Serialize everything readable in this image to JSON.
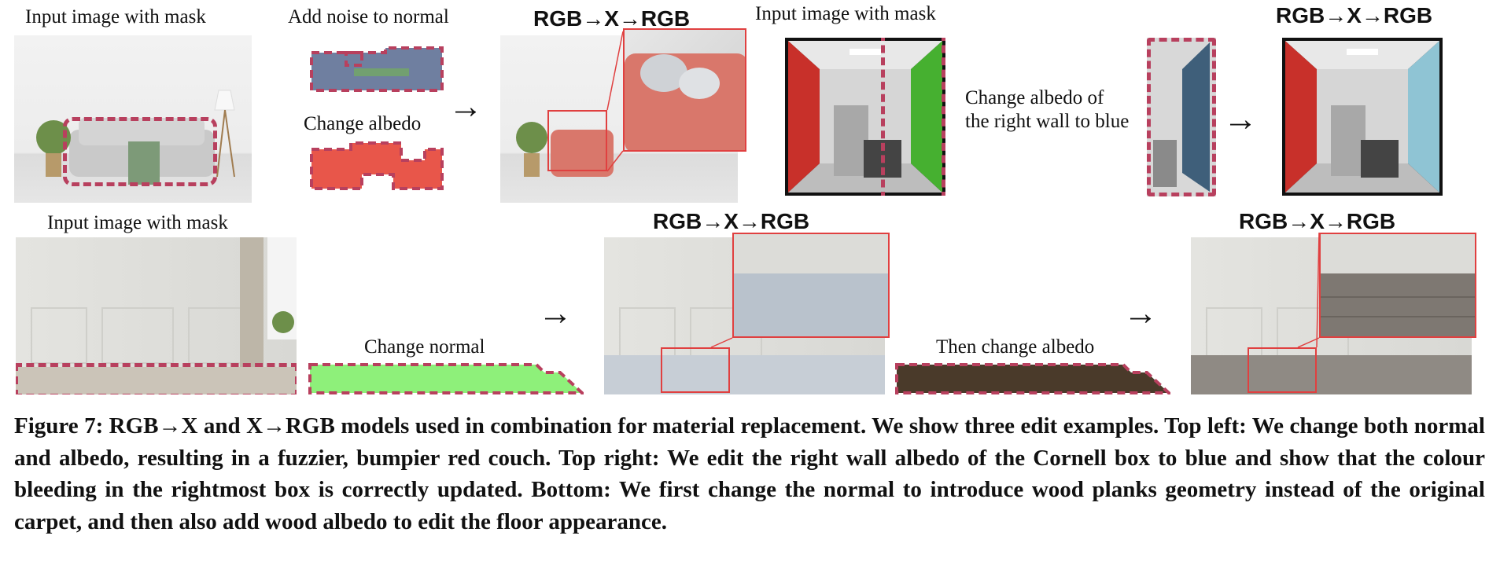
{
  "top_left": {
    "input_label": "Input image with mask",
    "noise_label": "Add noise to normal",
    "albedo_label": "Change albedo",
    "result_label": "RGB→X→RGB"
  },
  "top_right": {
    "input_label": "Input image with mask",
    "change_text": "Change albedo of the right wall to blue",
    "result_label": "RGB→X→RGB"
  },
  "bottom": {
    "input_label": "Input image with mask",
    "normal_label": "Change normal",
    "albedo_label": "Then change albedo",
    "result1_label": "RGB→X→RGB",
    "result2_label": "RGB→X→RGB"
  },
  "arrow_glyph": "→",
  "caption": "Figure 7: RGB→X and X→RGB models used in combination for material replacement. We show three edit examples. Top left: We change both normal and albedo, resulting in a fuzzier, bumpier red couch. Top right: We edit the right wall albedo of the Cornell box to blue and show that the colour bleeding in the rightmost box is correctly updated. Bottom: We first change the normal to introduce wood planks geometry instead of the original carpet, and then also add wood albedo to edit the floor appearance.",
  "colors": {
    "mask": "#b8405e",
    "inset": "#e04040",
    "red_couch": "#d9776b",
    "albedo_red": "#e8564a",
    "normal_green": "#8ef07a",
    "cornell_red": "#c8302a",
    "cornell_green": "#46b030",
    "cornell_blue": "#8fc4d4",
    "albedo_blue": "#3f5f7a",
    "wood": "#4a3a2a"
  }
}
